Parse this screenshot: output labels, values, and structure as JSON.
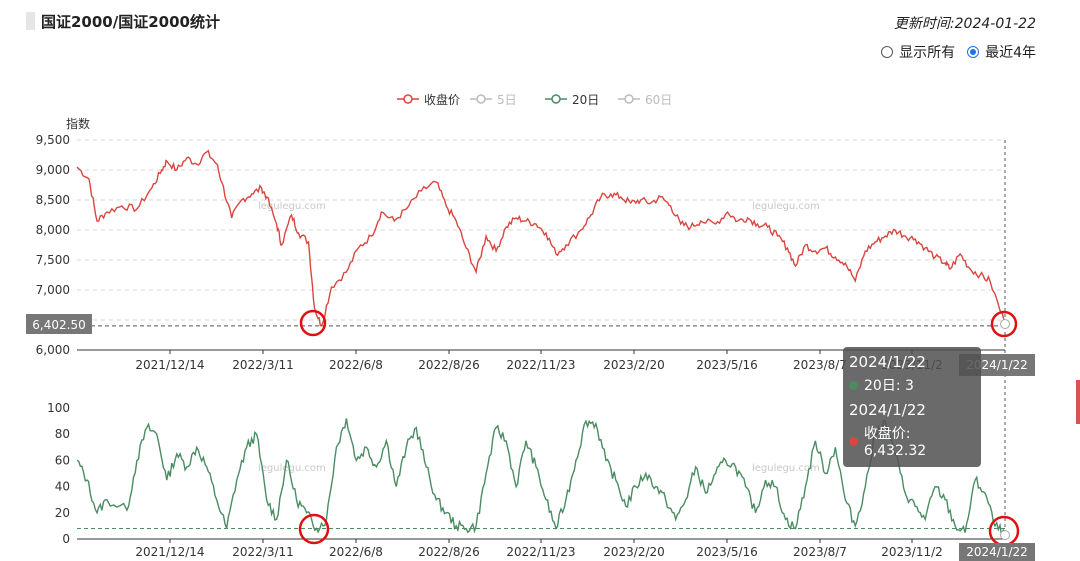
{
  "header": {
    "title": "国证2000/国证2000统计",
    "update_time": "更新时间:2024-01-22"
  },
  "range_toggle": {
    "options": [
      "显示所有",
      "最近4年"
    ],
    "selected": "最近4年",
    "accent_color": "#1a73e8"
  },
  "watermark": "legulegu.com",
  "tooltip": {
    "date1": "2024/1/22",
    "row1": "20日: 3",
    "date2": "2024/1/22",
    "row2": "收盘价: 6,432.32"
  },
  "chart_data": [
    {
      "type": "line",
      "ylabel": "指数",
      "ylim": [
        6000,
        9500
      ],
      "yticks": [
        "9,500",
        "9,000",
        "8,500",
        "8,000",
        "7,500",
        "7,000",
        "6,500",
        "6,000"
      ],
      "x_tick_labels": [
        "2021/12/14",
        "2022/3/11",
        "2022/6/8",
        "2022/8/26",
        "2022/11/23",
        "2023/2/20",
        "2023/5/16",
        "2023/8/7",
        "2023/11/2",
        "2024/1/22"
      ],
      "legend": [
        {
          "name": "收盘价",
          "color": "#d9463f",
          "active": true
        },
        {
          "name": "5日",
          "color": "#bbbbbb",
          "active": false
        },
        {
          "name": "20日",
          "color": "#4a8c62",
          "active": true
        },
        {
          "name": "60日",
          "color": "#bbbbbb",
          "active": false
        }
      ],
      "series": [
        {
          "name": "收盘价",
          "color": "#d9463f",
          "keypoints": [
            [
              0,
              9050
            ],
            [
              0.012,
              8850
            ],
            [
              0.02,
              8150
            ],
            [
              0.03,
              8300
            ],
            [
              0.045,
              8400
            ],
            [
              0.06,
              8350
            ],
            [
              0.075,
              8700
            ],
            [
              0.085,
              9000
            ],
            [
              0.09,
              9150
            ],
            [
              0.1,
              9000
            ],
            [
              0.11,
              9200
            ],
            [
              0.12,
              9100
            ],
            [
              0.13,
              9300
            ],
            [
              0.14,
              9100
            ],
            [
              0.145,
              8800
            ],
            [
              0.155,
              8200
            ],
            [
              0.165,
              8500
            ],
            [
              0.175,
              8600
            ],
            [
              0.185,
              8700
            ],
            [
              0.19,
              8550
            ],
            [
              0.2,
              8100
            ],
            [
              0.205,
              7750
            ],
            [
              0.215,
              8250
            ],
            [
              0.222,
              7950
            ],
            [
              0.232,
              7800
            ],
            [
              0.238,
              6700
            ],
            [
              0.245,
              6402.5
            ],
            [
              0.255,
              7050
            ],
            [
              0.27,
              7300
            ],
            [
              0.282,
              7700
            ],
            [
              0.295,
              7900
            ],
            [
              0.305,
              8300
            ],
            [
              0.318,
              8150
            ],
            [
              0.33,
              8350
            ],
            [
              0.345,
              8650
            ],
            [
              0.36,
              8800
            ],
            [
              0.37,
              8400
            ],
            [
              0.38,
              8150
            ],
            [
              0.39,
              7700
            ],
            [
              0.4,
              7300
            ],
            [
              0.41,
              7900
            ],
            [
              0.42,
              7650
            ],
            [
              0.43,
              8050
            ],
            [
              0.44,
              8200
            ],
            [
              0.45,
              8150
            ],
            [
              0.46,
              8100
            ],
            [
              0.47,
              7950
            ],
            [
              0.48,
              7600
            ],
            [
              0.49,
              7750
            ],
            [
              0.505,
              8000
            ],
            [
              0.515,
              8250
            ],
            [
              0.525,
              8550
            ],
            [
              0.535,
              8600
            ],
            [
              0.545,
              8550
            ],
            [
              0.555,
              8450
            ],
            [
              0.565,
              8500
            ],
            [
              0.575,
              8450
            ],
            [
              0.585,
              8550
            ],
            [
              0.595,
              8400
            ],
            [
              0.605,
              8100
            ],
            [
              0.615,
              8050
            ],
            [
              0.625,
              8150
            ],
            [
              0.64,
              8100
            ],
            [
              0.652,
              8300
            ],
            [
              0.662,
              8150
            ],
            [
              0.672,
              8200
            ],
            [
              0.682,
              8100
            ],
            [
              0.692,
              8050
            ],
            [
              0.702,
              7900
            ],
            [
              0.712,
              7700
            ],
            [
              0.72,
              7400
            ],
            [
              0.73,
              7750
            ],
            [
              0.74,
              7650
            ],
            [
              0.75,
              7700
            ],
            [
              0.76,
              7550
            ],
            [
              0.77,
              7450
            ],
            [
              0.78,
              7150
            ],
            [
              0.79,
              7650
            ],
            [
              0.8,
              7800
            ],
            [
              0.81,
              7900
            ],
            [
              0.82,
              8000
            ],
            [
              0.83,
              7900
            ],
            [
              0.84,
              7850
            ],
            [
              0.85,
              7700
            ],
            [
              0.86,
              7550
            ],
            [
              0.87,
              7450
            ],
            [
              0.875,
              7350
            ],
            [
              0.885,
              7600
            ],
            [
              0.895,
              7350
            ],
            [
              0.905,
              7250
            ],
            [
              0.915,
              7150
            ],
            [
              0.93,
              6432.32
            ]
          ]
        },
        {
          "name": "20日",
          "color": "#4a8c62",
          "ylim": [
            0,
            100
          ],
          "yticks": [
            "100",
            "80",
            "60",
            "40",
            "20",
            "0"
          ],
          "keypoints": [
            [
              0,
              60
            ],
            [
              0.01,
              45
            ],
            [
              0.02,
              20
            ],
            [
              0.03,
              30
            ],
            [
              0.05,
              22
            ],
            [
              0.06,
              60
            ],
            [
              0.07,
              85
            ],
            [
              0.08,
              80
            ],
            [
              0.09,
              45
            ],
            [
              0.1,
              65
            ],
            [
              0.11,
              55
            ],
            [
              0.12,
              70
            ],
            [
              0.13,
              55
            ],
            [
              0.14,
              30
            ],
            [
              0.15,
              8
            ],
            [
              0.16,
              45
            ],
            [
              0.17,
              70
            ],
            [
              0.18,
              80
            ],
            [
              0.19,
              30
            ],
            [
              0.2,
              15
            ],
            [
              0.21,
              60
            ],
            [
              0.22,
              30
            ],
            [
              0.23,
              20
            ],
            [
              0.24,
              8
            ],
            [
              0.25,
              15
            ],
            [
              0.26,
              70
            ],
            [
              0.27,
              92
            ],
            [
              0.28,
              60
            ],
            [
              0.29,
              70
            ],
            [
              0.3,
              55
            ],
            [
              0.31,
              75
            ],
            [
              0.32,
              40
            ],
            [
              0.33,
              70
            ],
            [
              0.34,
              85
            ],
            [
              0.35,
              55
            ],
            [
              0.36,
              30
            ],
            [
              0.37,
              20
            ],
            [
              0.38,
              10
            ],
            [
              0.39,
              8
            ],
            [
              0.4,
              10
            ],
            [
              0.41,
              50
            ],
            [
              0.42,
              85
            ],
            [
              0.43,
              75
            ],
            [
              0.44,
              40
            ],
            [
              0.45,
              75
            ],
            [
              0.46,
              55
            ],
            [
              0.47,
              30
            ],
            [
              0.48,
              8
            ],
            [
              0.49,
              30
            ],
            [
              0.5,
              60
            ],
            [
              0.51,
              90
            ],
            [
              0.52,
              88
            ],
            [
              0.53,
              60
            ],
            [
              0.54,
              45
            ],
            [
              0.55,
              25
            ],
            [
              0.56,
              40
            ],
            [
              0.57,
              50
            ],
            [
              0.58,
              40
            ],
            [
              0.59,
              30
            ],
            [
              0.6,
              15
            ],
            [
              0.61,
              30
            ],
            [
              0.62,
              55
            ],
            [
              0.63,
              35
            ],
            [
              0.64,
              50
            ],
            [
              0.65,
              60
            ],
            [
              0.66,
              55
            ],
            [
              0.67,
              40
            ],
            [
              0.68,
              20
            ],
            [
              0.69,
              45
            ],
            [
              0.7,
              40
            ],
            [
              0.71,
              15
            ],
            [
              0.72,
              8
            ],
            [
              0.73,
              40
            ],
            [
              0.74,
              75
            ],
            [
              0.75,
              50
            ],
            [
              0.76,
              70
            ],
            [
              0.77,
              30
            ],
            [
              0.78,
              10
            ],
            [
              0.79,
              40
            ],
            [
              0.8,
              80
            ],
            [
              0.81,
              90
            ],
            [
              0.82,
              65
            ],
            [
              0.83,
              35
            ],
            [
              0.84,
              25
            ],
            [
              0.85,
              15
            ],
            [
              0.86,
              40
            ],
            [
              0.87,
              30
            ],
            [
              0.88,
              10
            ],
            [
              0.89,
              5
            ],
            [
              0.9,
              45
            ],
            [
              0.91,
              35
            ],
            [
              0.92,
              10
            ],
            [
              0.93,
              3
            ]
          ]
        }
      ],
      "threshold_lines": [
        6402.5,
        8
      ],
      "y_highlight_label": "6,402.50",
      "x_highlight_label": "2024/1/22"
    }
  ]
}
